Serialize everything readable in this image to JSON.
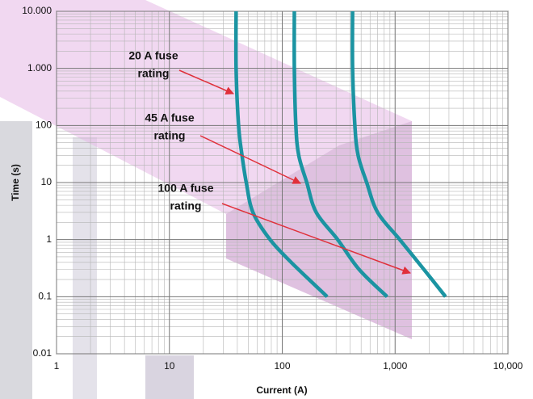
{
  "chart_data": {
    "type": "line",
    "xlabel": "Current (A)",
    "ylabel": "Time (s)",
    "xscale": "log",
    "yscale": "log",
    "grid": true,
    "xlim": [
      1,
      10000
    ],
    "xticks": [
      1,
      10,
      100,
      {
        "value": 1000,
        "label": "1,000"
      },
      {
        "value": 10000,
        "label": "10,000"
      }
    ],
    "ylim": [
      0.01,
      10000
    ],
    "yticks": [
      0.01,
      0.1,
      1,
      10,
      100,
      {
        "value": 1000,
        "label": "1.000"
      },
      {
        "value": 10000,
        "label": "10.000"
      }
    ],
    "series": [
      {
        "color": "#1b94a2",
        "x": [
          39,
          39,
          41,
          44,
          48,
          55,
          78,
          120,
          250
        ],
        "values": [
          10000,
          1000,
          100,
          30,
          10,
          3,
          1,
          0.4,
          0.1
        ]
      },
      {
        "color": "#1b94a2",
        "x": [
          128,
          128,
          132,
          140,
          165,
          200,
          310,
          480,
          850
        ],
        "values": [
          10000,
          1000,
          100,
          30,
          10,
          3,
          1,
          0.3,
          0.1
        ]
      },
      {
        "color": "#1b94a2",
        "x": [
          420,
          420,
          440,
          470,
          560,
          700,
          1100,
          1800,
          2800
        ],
        "values": [
          10000,
          1000,
          100,
          30,
          10,
          3,
          1,
          0.3,
          0.1
        ]
      }
    ],
    "annotations": [
      {
        "lines": [
          "20 A fuse",
          "rating"
        ]
      },
      {
        "lines": [
          "45 A fuse",
          "rating"
        ]
      },
      {
        "lines": [
          "100 A fuse",
          "rating"
        ]
      }
    ]
  }
}
